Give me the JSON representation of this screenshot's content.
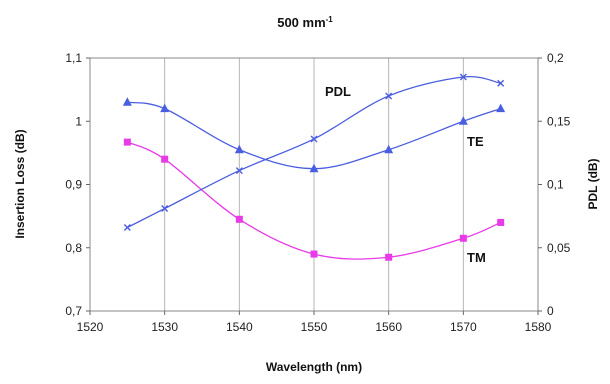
{
  "chart_data": {
    "type": "line",
    "title": "500 mm",
    "title_superscript": "-1",
    "xlabel": "Wavelength (nm)",
    "ylabel_left": "Insertion Loss (dB)",
    "ylabel_right": "PDL (dB)",
    "xlim": [
      1520,
      1580
    ],
    "x_ticks": [
      "1520",
      "1530",
      "1540",
      "1550",
      "1560",
      "1570",
      "1580"
    ],
    "ylim_left": [
      0.7,
      1.1
    ],
    "y_ticks_left": [
      "0,7",
      "0,8",
      "0,9",
      "1",
      "1,1"
    ],
    "ylim_right": [
      0,
      0.2
    ],
    "y_ticks_right": [
      "0",
      "0,05",
      "0,1",
      "0,15",
      "0,2"
    ],
    "grid": "vertical",
    "legend": "none",
    "series": [
      {
        "name": "TE",
        "axis": "left",
        "color": "#4a5ee0",
        "marker": "triangle",
        "x": [
          1525,
          1530,
          1540,
          1550,
          1560,
          1570,
          1575
        ],
        "y": [
          1.03,
          1.02,
          0.955,
          0.925,
          0.955,
          1.0,
          1.02
        ]
      },
      {
        "name": "TM",
        "axis": "left",
        "color": "#e83ae8",
        "marker": "square",
        "x": [
          1525,
          1530,
          1540,
          1550,
          1560,
          1570,
          1575
        ],
        "y": [
          0.967,
          0.94,
          0.845,
          0.79,
          0.785,
          0.815,
          0.84
        ]
      },
      {
        "name": "PDL",
        "axis": "right",
        "color": "#4a5ee0",
        "marker": "x",
        "x": [
          1525,
          1530,
          1540,
          1550,
          1560,
          1570,
          1575
        ],
        "y": [
          0.066,
          0.081,
          0.111,
          0.136,
          0.17,
          0.185,
          0.18
        ]
      }
    ]
  }
}
